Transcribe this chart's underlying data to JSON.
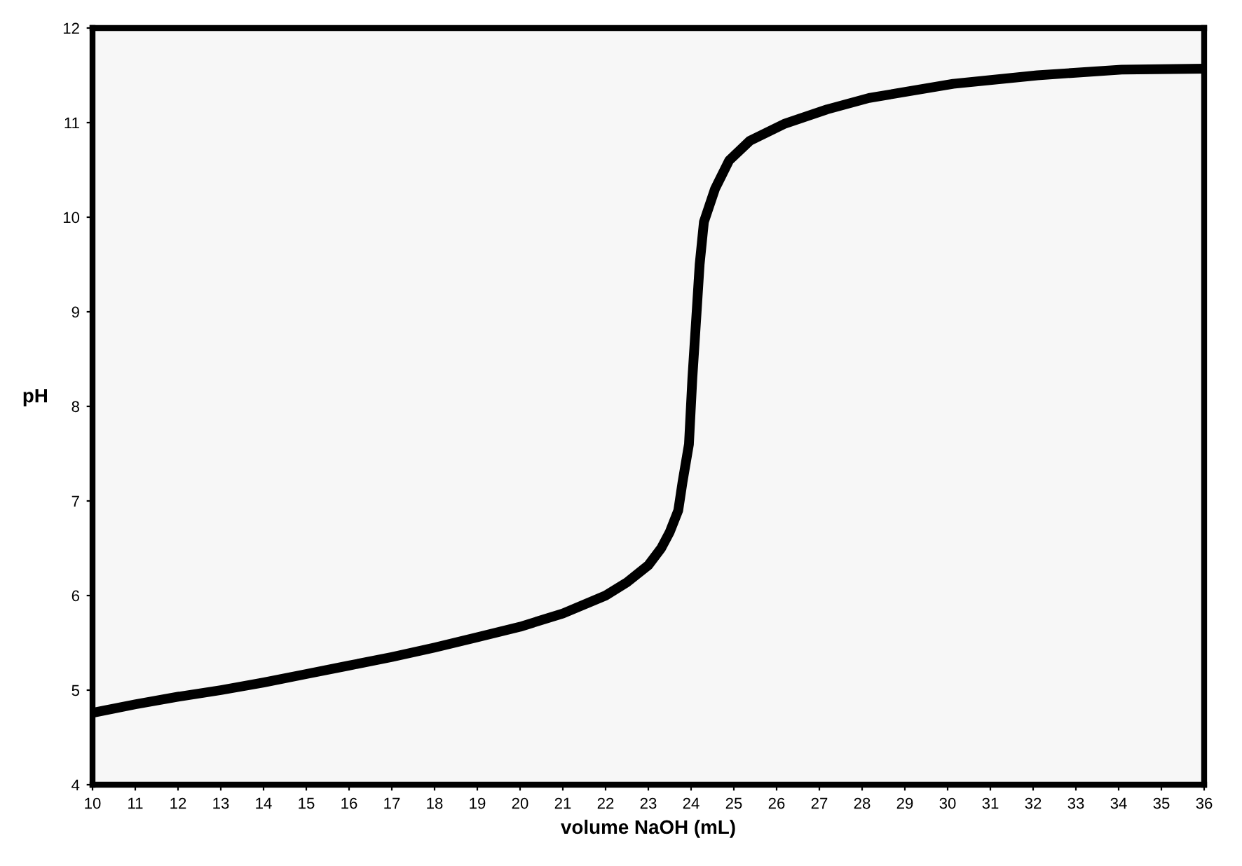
{
  "chart_data": {
    "type": "line",
    "xlabel": "volume NaOH (mL)",
    "ylabel": "pH",
    "x": [
      10,
      11,
      12,
      13,
      14,
      15,
      16,
      17,
      18,
      19,
      20,
      21,
      22,
      22.5,
      23,
      23.3,
      23.5,
      23.7,
      23.8,
      23.95,
      24.03,
      24.13,
      24.2,
      24.3,
      24.56,
      24.89,
      25.38,
      26.2,
      27.18,
      28.16,
      30.13,
      32.1,
      34.07,
      36
    ],
    "series": [
      {
        "color": "#000000",
        "values": [
          4.76,
          4.85,
          4.93,
          5.0,
          5.08,
          5.17,
          5.26,
          5.35,
          5.45,
          5.56,
          5.67,
          5.81,
          6.0,
          6.14,
          6.32,
          6.5,
          6.67,
          6.9,
          7.2,
          7.6,
          8.3,
          9.0,
          9.5,
          9.95,
          10.3,
          10.6,
          10.81,
          10.99,
          11.14,
          11.26,
          11.41,
          11.5,
          11.56,
          11.57
        ]
      }
    ],
    "xlim": [
      10,
      36
    ],
    "xticks": [
      10,
      11,
      12,
      13,
      14,
      15,
      16,
      17,
      18,
      19,
      20,
      21,
      22,
      23,
      24,
      25,
      26,
      27,
      28,
      29,
      30,
      31,
      32,
      33,
      34,
      35,
      36
    ],
    "ylim": [
      4,
      12
    ],
    "yticks": [
      4,
      5,
      6,
      7,
      8,
      9,
      10,
      11,
      12
    ],
    "grid": false,
    "legend": false,
    "marker": "none",
    "line_style": "solid"
  }
}
